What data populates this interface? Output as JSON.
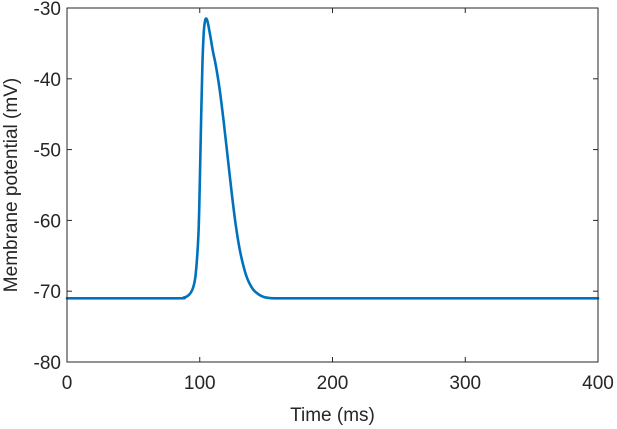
{
  "chart_data": {
    "type": "line",
    "title": "",
    "xlabel": "Time (ms)",
    "ylabel": "Membrane potential (mV)",
    "xlim": [
      0,
      400
    ],
    "ylim": [
      -80,
      -30
    ],
    "xticks": [
      0,
      100,
      200,
      300,
      400
    ],
    "yticks": [
      -80,
      -70,
      -60,
      -50,
      -40,
      -30
    ],
    "xtick_labels": [
      "0",
      "100",
      "200",
      "300",
      "400"
    ],
    "ytick_labels": [
      "-80",
      "-70",
      "-60",
      "-50",
      "-40",
      "-30"
    ],
    "grid": false,
    "line_color": "#0072BD",
    "axis_color": "#262626",
    "series": [
      {
        "x": [
          0,
          80,
          88,
          92,
          95,
          97,
          99,
          100,
          101,
          102,
          103,
          104,
          105,
          106,
          108,
          110,
          112,
          115,
          118,
          121,
          124,
          127,
          130,
          133,
          136,
          140,
          144,
          148,
          152,
          156,
          160,
          165,
          170,
          180,
          200,
          300,
          400
        ],
        "y": [
          -71,
          -71,
          -70.9,
          -70.5,
          -69.5,
          -67.5,
          -62,
          -55,
          -46,
          -38,
          -33.5,
          -31.8,
          -31.5,
          -32,
          -34,
          -36.2,
          -38,
          -41.5,
          -46,
          -51,
          -56,
          -60.5,
          -64,
          -66.5,
          -68.3,
          -69.7,
          -70.4,
          -70.8,
          -70.95,
          -71,
          -71,
          -71,
          -71,
          -71,
          -71,
          -71,
          -71
        ]
      }
    ]
  }
}
